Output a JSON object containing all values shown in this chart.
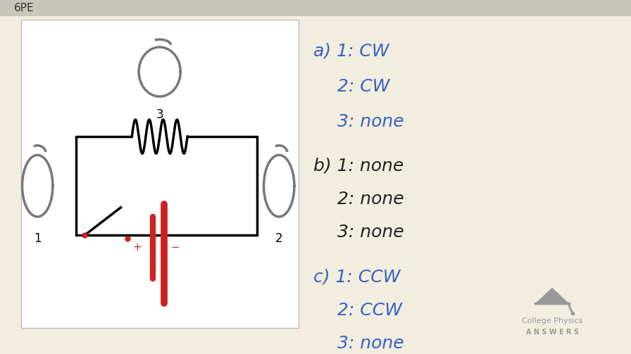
{
  "bg_color": "#f2eedf",
  "top_bar_color": "#c8c5bb",
  "label_6PE": "6PE",
  "label_6PE_color": "#333333",
  "diagram_bg": "#ffffff",
  "answer_color_a": "#3a5fc5",
  "answer_color_b": "#222222",
  "answer_color_c": "#3a5fc5",
  "logo_color": "#999999",
  "logo_text1": "College Physics",
  "logo_text2": "A N S W E R S"
}
